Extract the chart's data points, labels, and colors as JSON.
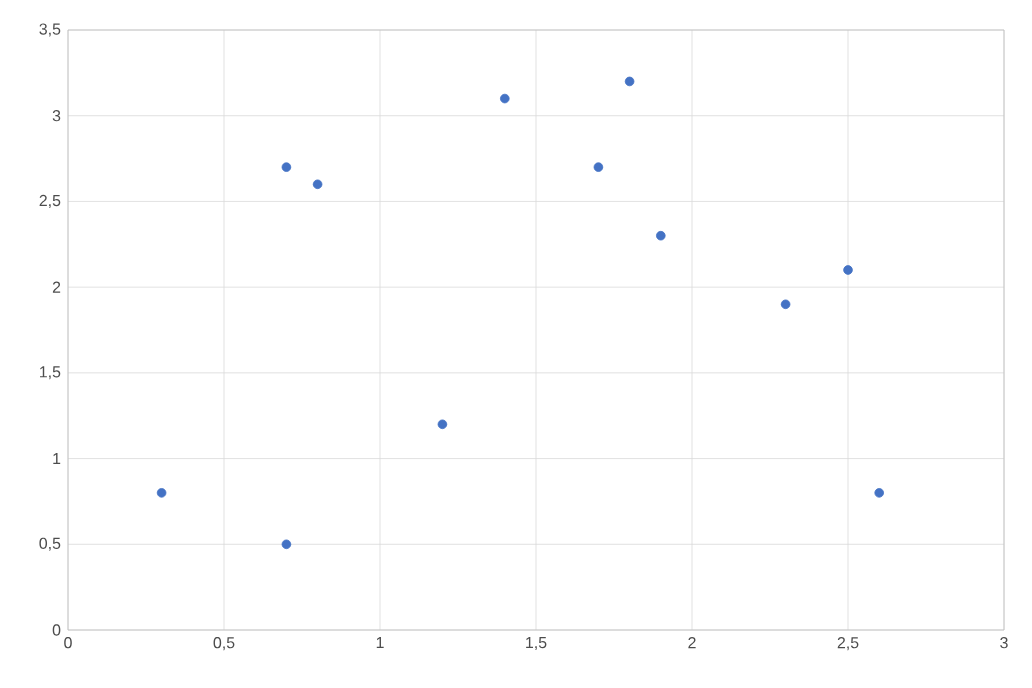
{
  "chart_data": {
    "type": "scatter",
    "x": [
      0.3,
      0.7,
      0.7,
      0.8,
      1.2,
      1.4,
      1.7,
      1.8,
      1.9,
      2.3,
      2.5,
      2.6
    ],
    "series": [
      {
        "color": "#4472c4",
        "values": [
          0.8,
          0.5,
          2.7,
          2.6,
          1.2,
          3.1,
          2.7,
          3.2,
          2.3,
          1.9,
          2.1,
          0.8
        ]
      }
    ],
    "xlim": [
      0,
      3
    ],
    "ylim": [
      0,
      3.5
    ],
    "xticks": [
      0,
      {
        "value": 0.5,
        "label": "0,5"
      },
      1,
      {
        "value": 1.5,
        "label": "1,5"
      },
      2,
      {
        "value": 2.5,
        "label": "2,5"
      },
      3
    ],
    "yticks": [
      0,
      {
        "value": 0.5,
        "label": "0,5"
      },
      1,
      {
        "value": 1.5,
        "label": "1,5"
      },
      2,
      {
        "value": 2.5,
        "label": "2,5"
      },
      3,
      {
        "value": 3.5,
        "label": "3,5"
      }
    ],
    "grid": true,
    "marker": "circle"
  }
}
